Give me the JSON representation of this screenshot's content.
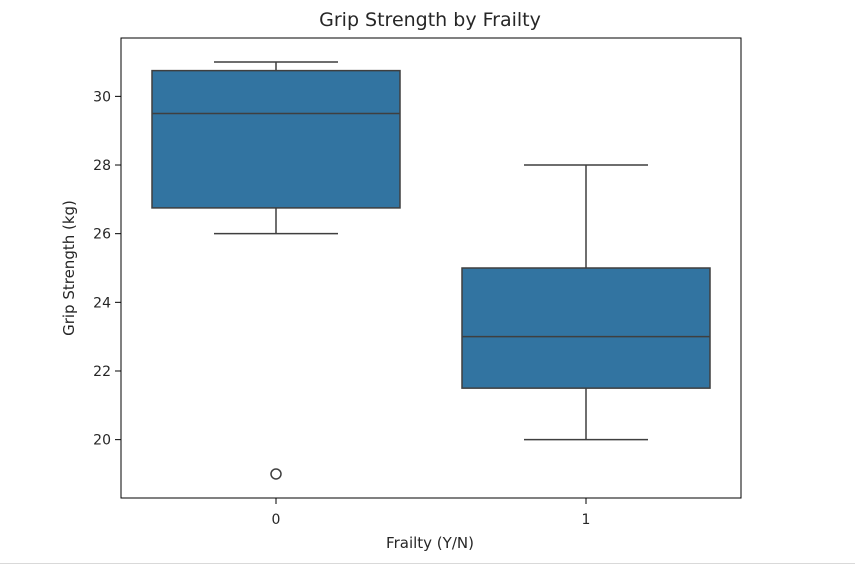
{
  "chart_data": {
    "type": "box",
    "title": "Grip Strength by Frailty",
    "xlabel": "Frailty (Y/N)",
    "ylabel": "Grip Strength (kg)",
    "categories": [
      "0",
      "1"
    ],
    "boxes": [
      {
        "category": "0",
        "whisker_low": 26,
        "q1": 26.75,
        "median": 29.5,
        "q3": 30.75,
        "whisker_high": 31,
        "outliers": [
          19
        ]
      },
      {
        "category": "1",
        "whisker_low": 20,
        "q1": 21.5,
        "median": 23,
        "q3": 25,
        "whisker_high": 28,
        "outliers": []
      }
    ],
    "yticks": [
      20,
      22,
      24,
      26,
      28,
      30
    ],
    "ylim": [
      18.3,
      31.7
    ],
    "box_color": "#3274a1",
    "line_color": "#3f3f3f",
    "grid": false,
    "legend": "none"
  }
}
